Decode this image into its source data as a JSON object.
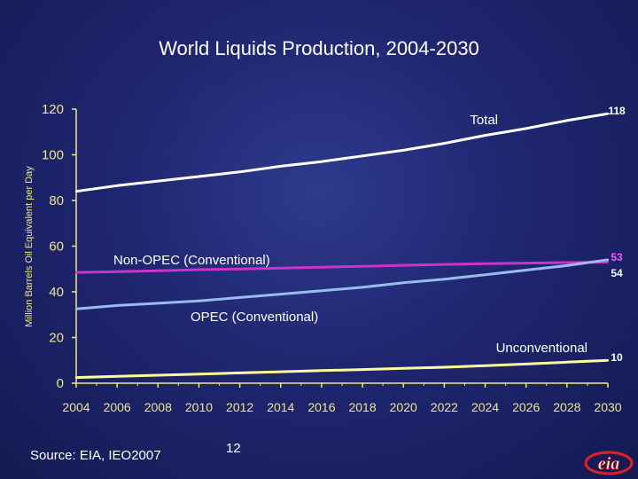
{
  "slide": {
    "title": "World Liquids Production, 2004-2030",
    "source": "Source:  EIA, IEO2007",
    "page_number": "12",
    "logo_text": "eia"
  },
  "colors": {
    "total": "#ffffff",
    "non_opec": "#cc33cc",
    "opec": "#99bbee",
    "unconventional": "#ffff99",
    "axis": "#f0e68c"
  },
  "chart_data": {
    "type": "line",
    "ylabel": "Million Barrels Oil Equivalent per Day",
    "ylim": [
      0,
      120
    ],
    "yticks": [
      0,
      20,
      40,
      60,
      80,
      100,
      120
    ],
    "xlim": [
      2004,
      2030
    ],
    "xticks": [
      2004,
      2006,
      2008,
      2010,
      2012,
      2014,
      2016,
      2018,
      2020,
      2022,
      2024,
      2026,
      2028,
      2030
    ],
    "series": [
      {
        "key": "total",
        "name": "Total",
        "x": [
          2004,
          2006,
          2008,
          2010,
          2012,
          2014,
          2016,
          2018,
          2020,
          2022,
          2024,
          2026,
          2028,
          2030
        ],
        "values": [
          84,
          86.5,
          88.5,
          90.5,
          92.5,
          95,
          97,
          99.5,
          102,
          105,
          108.5,
          111.5,
          115,
          118
        ],
        "end_label": "118"
      },
      {
        "key": "non_opec",
        "name": "Non-OPEC (Conventional)",
        "x": [
          2004,
          2006,
          2008,
          2010,
          2012,
          2014,
          2016,
          2018,
          2020,
          2022,
          2024,
          2026,
          2028,
          2030
        ],
        "values": [
          48.5,
          48.8,
          49.2,
          49.7,
          50,
          50.4,
          50.8,
          51.2,
          51.6,
          52,
          52.3,
          52.6,
          52.8,
          53
        ],
        "end_label": "53"
      },
      {
        "key": "opec",
        "name": "OPEC (Conventional)",
        "x": [
          2004,
          2006,
          2008,
          2010,
          2012,
          2014,
          2016,
          2018,
          2020,
          2022,
          2024,
          2026,
          2028,
          2030
        ],
        "values": [
          32.5,
          34,
          35,
          36,
          37.5,
          39,
          40.5,
          42,
          44,
          45.5,
          47.5,
          49.5,
          51.5,
          54
        ],
        "end_label": "54"
      },
      {
        "key": "unconventional",
        "name": "Unconventional",
        "x": [
          2004,
          2006,
          2008,
          2010,
          2012,
          2014,
          2016,
          2018,
          2020,
          2022,
          2024,
          2026,
          2028,
          2030
        ],
        "values": [
          2.5,
          3,
          3.5,
          4,
          4.5,
          5,
          5.5,
          6,
          6.5,
          7,
          7.7,
          8.4,
          9.2,
          10
        ],
        "end_label": "10"
      }
    ]
  }
}
